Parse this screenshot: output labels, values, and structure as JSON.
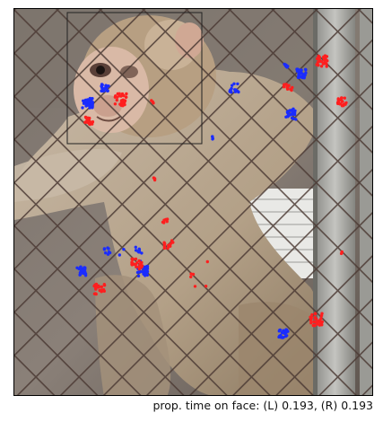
{
  "figure": {
    "caption": "prop. time on face: (L) 0.193, (R) 0.193",
    "left_eye_color": "#1a2cff",
    "right_eye_color": "#ff1f1f",
    "face_box_color": "#222222",
    "scene_icons": [
      "monkey-photo",
      "chain-link-fence",
      "metal-pole"
    ]
  }
}
